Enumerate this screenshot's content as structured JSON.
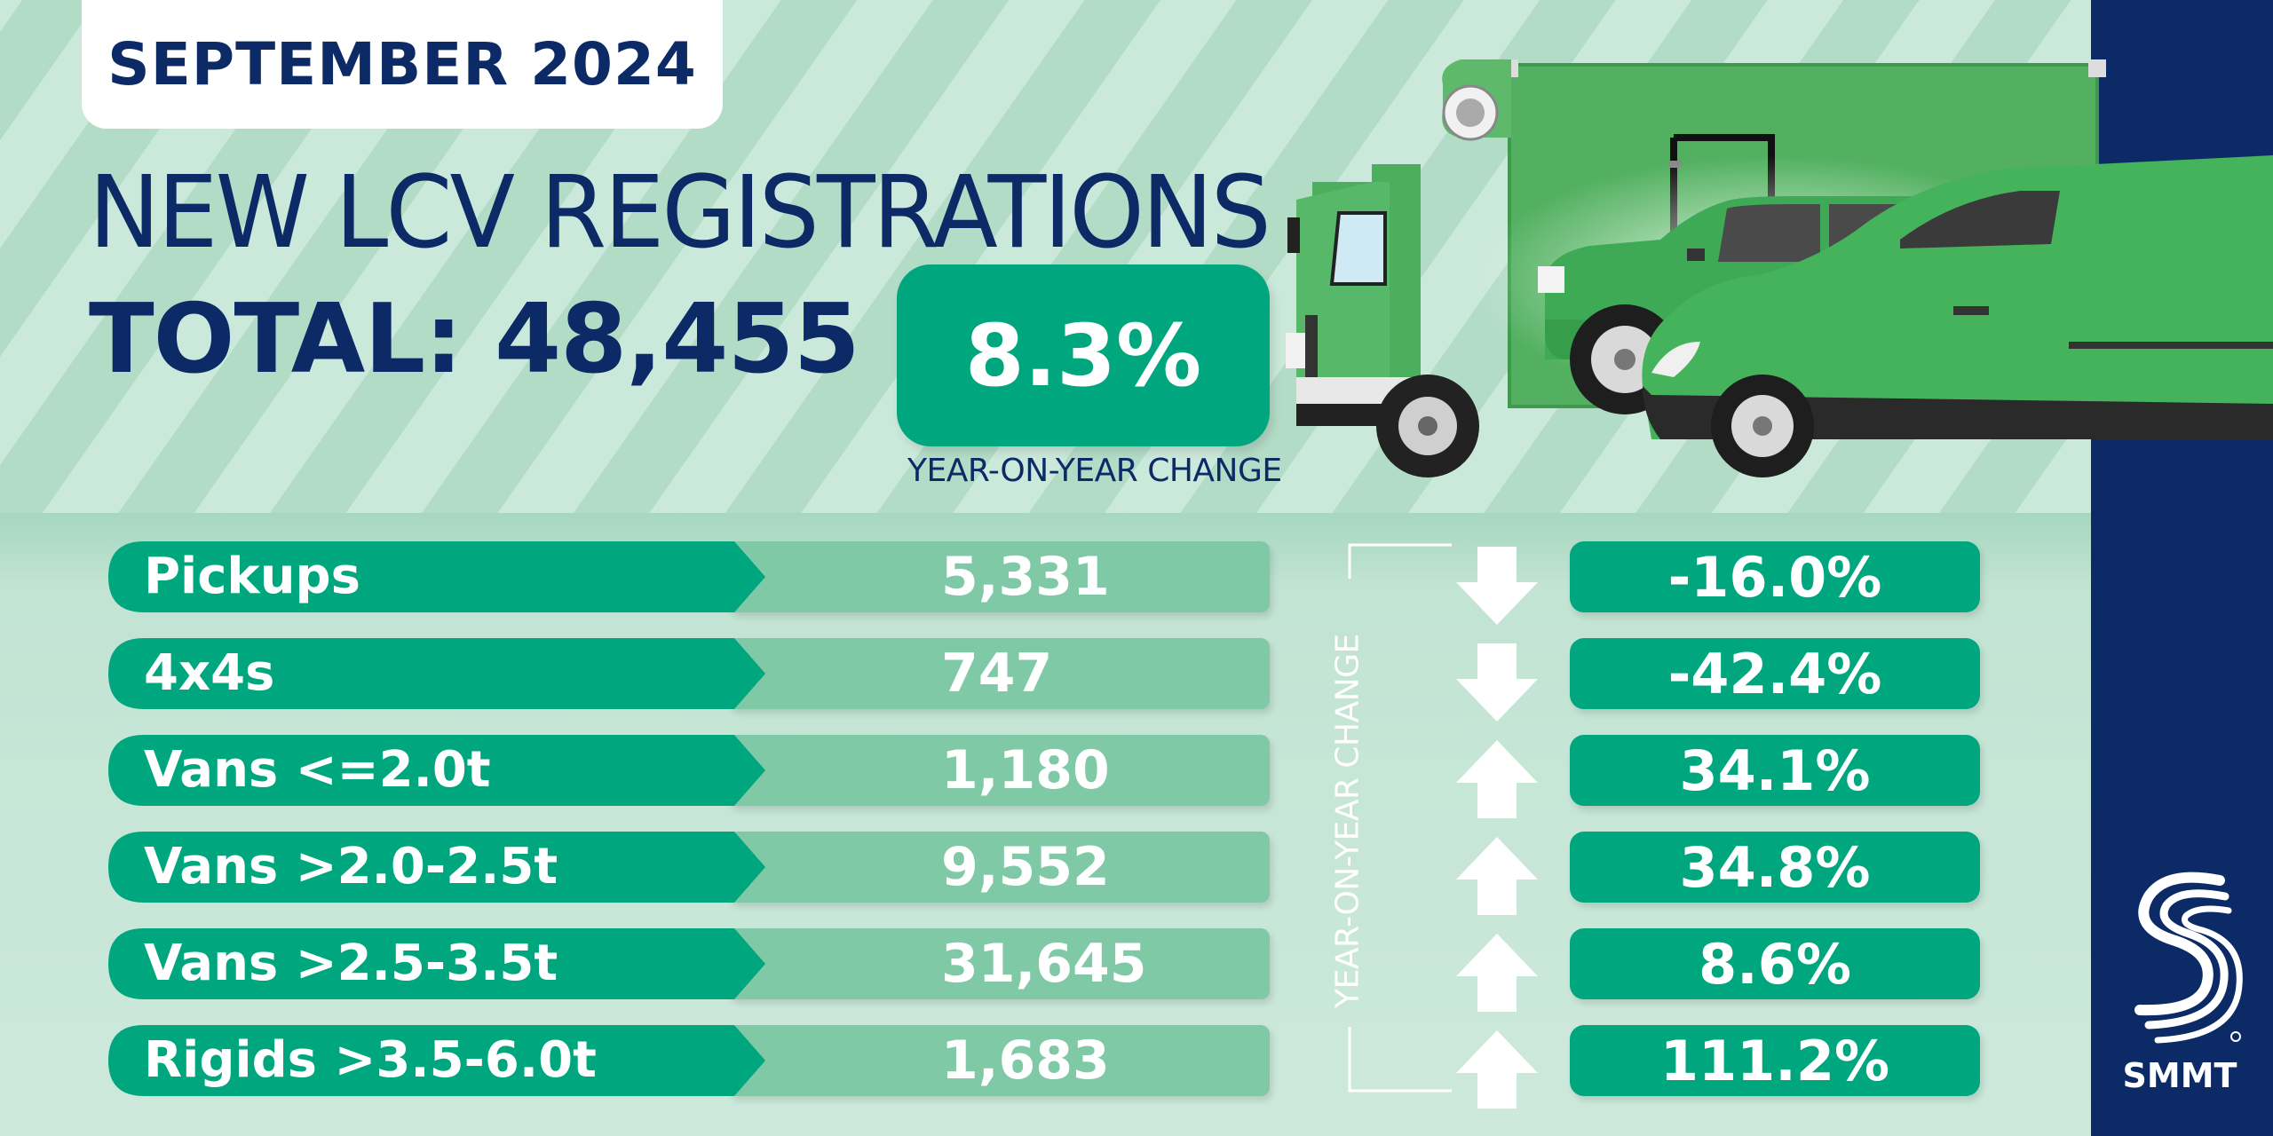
{
  "header": {
    "date": "SEPTEMBER 2024",
    "title": "NEW LCV REGISTRATIONS",
    "total_label": "TOTAL: 48,455",
    "yoy_change": "8.3%",
    "yoy_caption": "YEAR-ON-YEAR CHANGE"
  },
  "rows": [
    {
      "label": "Pickups",
      "value": "5,331",
      "change": "-16.0%",
      "direction": "down"
    },
    {
      "label": "4x4s",
      "value": "747",
      "change": "-42.4%",
      "direction": "down"
    },
    {
      "label": "Vans <=2.0t",
      "value": "1,180",
      "change": "34.1%",
      "direction": "up"
    },
    {
      "label": "Vans >2.0-2.5t",
      "value": "9,552",
      "change": "34.8%",
      "direction": "up"
    },
    {
      "label": "Vans >2.5-3.5t",
      "value": "31,645",
      "change": "8.6%",
      "direction": "up"
    },
    {
      "label": "Rigids >3.5-6.0t",
      "value": "1,683",
      "change": "111.2%",
      "direction": "up"
    }
  ],
  "side_label": "YEAR-ON-YEAR CHANGE",
  "brand": {
    "name": "SMMT"
  },
  "colors": {
    "navy": "#0c2a66",
    "green": "#00a77e",
    "value_bar": "#7fc9a6",
    "vehicle_green": "#4caf5e"
  }
}
